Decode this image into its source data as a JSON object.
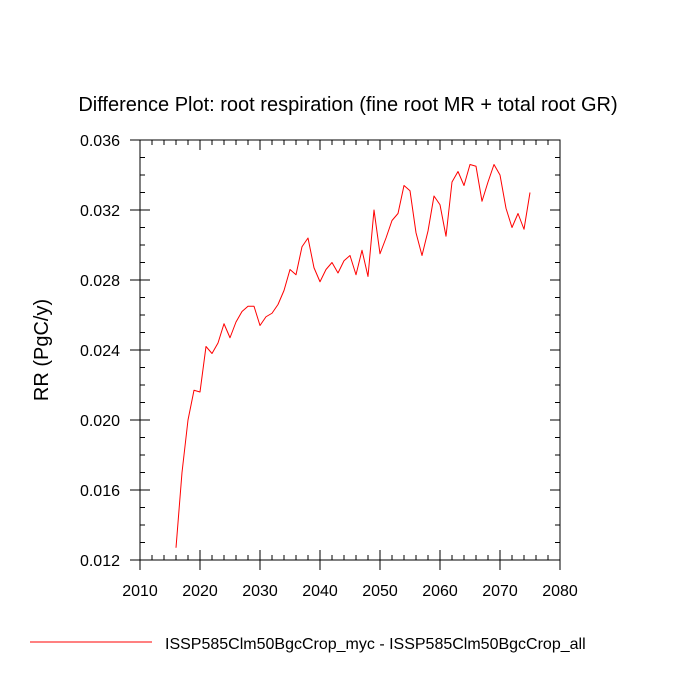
{
  "chart_data": {
    "type": "line",
    "title": "Difference Plot: root respiration (fine root MR + total root GR)",
    "xlabel": "",
    "ylabel": "RR  (PgC/y)",
    "xlim": [
      2010,
      2080
    ],
    "ylim": [
      0.012,
      0.036
    ],
    "xticks": [
      2010,
      2020,
      2030,
      2040,
      2050,
      2060,
      2070,
      2080
    ],
    "xtick_labels": [
      "2010",
      "2020",
      "2030",
      "2040",
      "2050",
      "2060",
      "2070",
      "2080"
    ],
    "yticks": [
      0.012,
      0.016,
      0.02,
      0.024,
      0.028,
      0.032,
      0.036
    ],
    "ytick_labels": [
      "0.012",
      "0.016",
      "0.020",
      "0.024",
      "0.028",
      "0.032",
      "0.036"
    ],
    "grid": false,
    "legend_position": "bottom",
    "series": [
      {
        "name": "ISSP585Clm50BgcCrop_myc - ISSP585Clm50BgcCrop_all",
        "color": "#ff0000",
        "x": [
          2016,
          2017,
          2018,
          2019,
          2020,
          2021,
          2022,
          2023,
          2024,
          2025,
          2026,
          2027,
          2028,
          2029,
          2030,
          2031,
          2032,
          2033,
          2034,
          2035,
          2036,
          2037,
          2038,
          2039,
          2040,
          2041,
          2042,
          2043,
          2044,
          2045,
          2046,
          2047,
          2048,
          2049,
          2050,
          2051,
          2052,
          2053,
          2054,
          2055,
          2056,
          2057,
          2058,
          2059,
          2060,
          2061,
          2062,
          2063,
          2064,
          2065,
          2066,
          2067,
          2068,
          2069,
          2070,
          2071,
          2072,
          2073,
          2074,
          2075
        ],
        "values": [
          0.0127,
          0.017,
          0.02,
          0.0217,
          0.0216,
          0.0242,
          0.0238,
          0.0244,
          0.0255,
          0.0247,
          0.0256,
          0.0262,
          0.0265,
          0.0265,
          0.0254,
          0.0259,
          0.0261,
          0.0266,
          0.0274,
          0.0286,
          0.0283,
          0.0299,
          0.0304,
          0.0287,
          0.0279,
          0.0286,
          0.029,
          0.0284,
          0.0291,
          0.0294,
          0.0283,
          0.0297,
          0.0282,
          0.032,
          0.0295,
          0.0304,
          0.0314,
          0.0318,
          0.0334,
          0.0331,
          0.0307,
          0.0294,
          0.0308,
          0.0328,
          0.0323,
          0.0305,
          0.0336,
          0.0342,
          0.0334,
          0.0346,
          0.0345,
          0.0325,
          0.0336,
          0.0346,
          0.034,
          0.0321,
          0.031,
          0.0318,
          0.0309,
          0.033
        ]
      }
    ]
  }
}
